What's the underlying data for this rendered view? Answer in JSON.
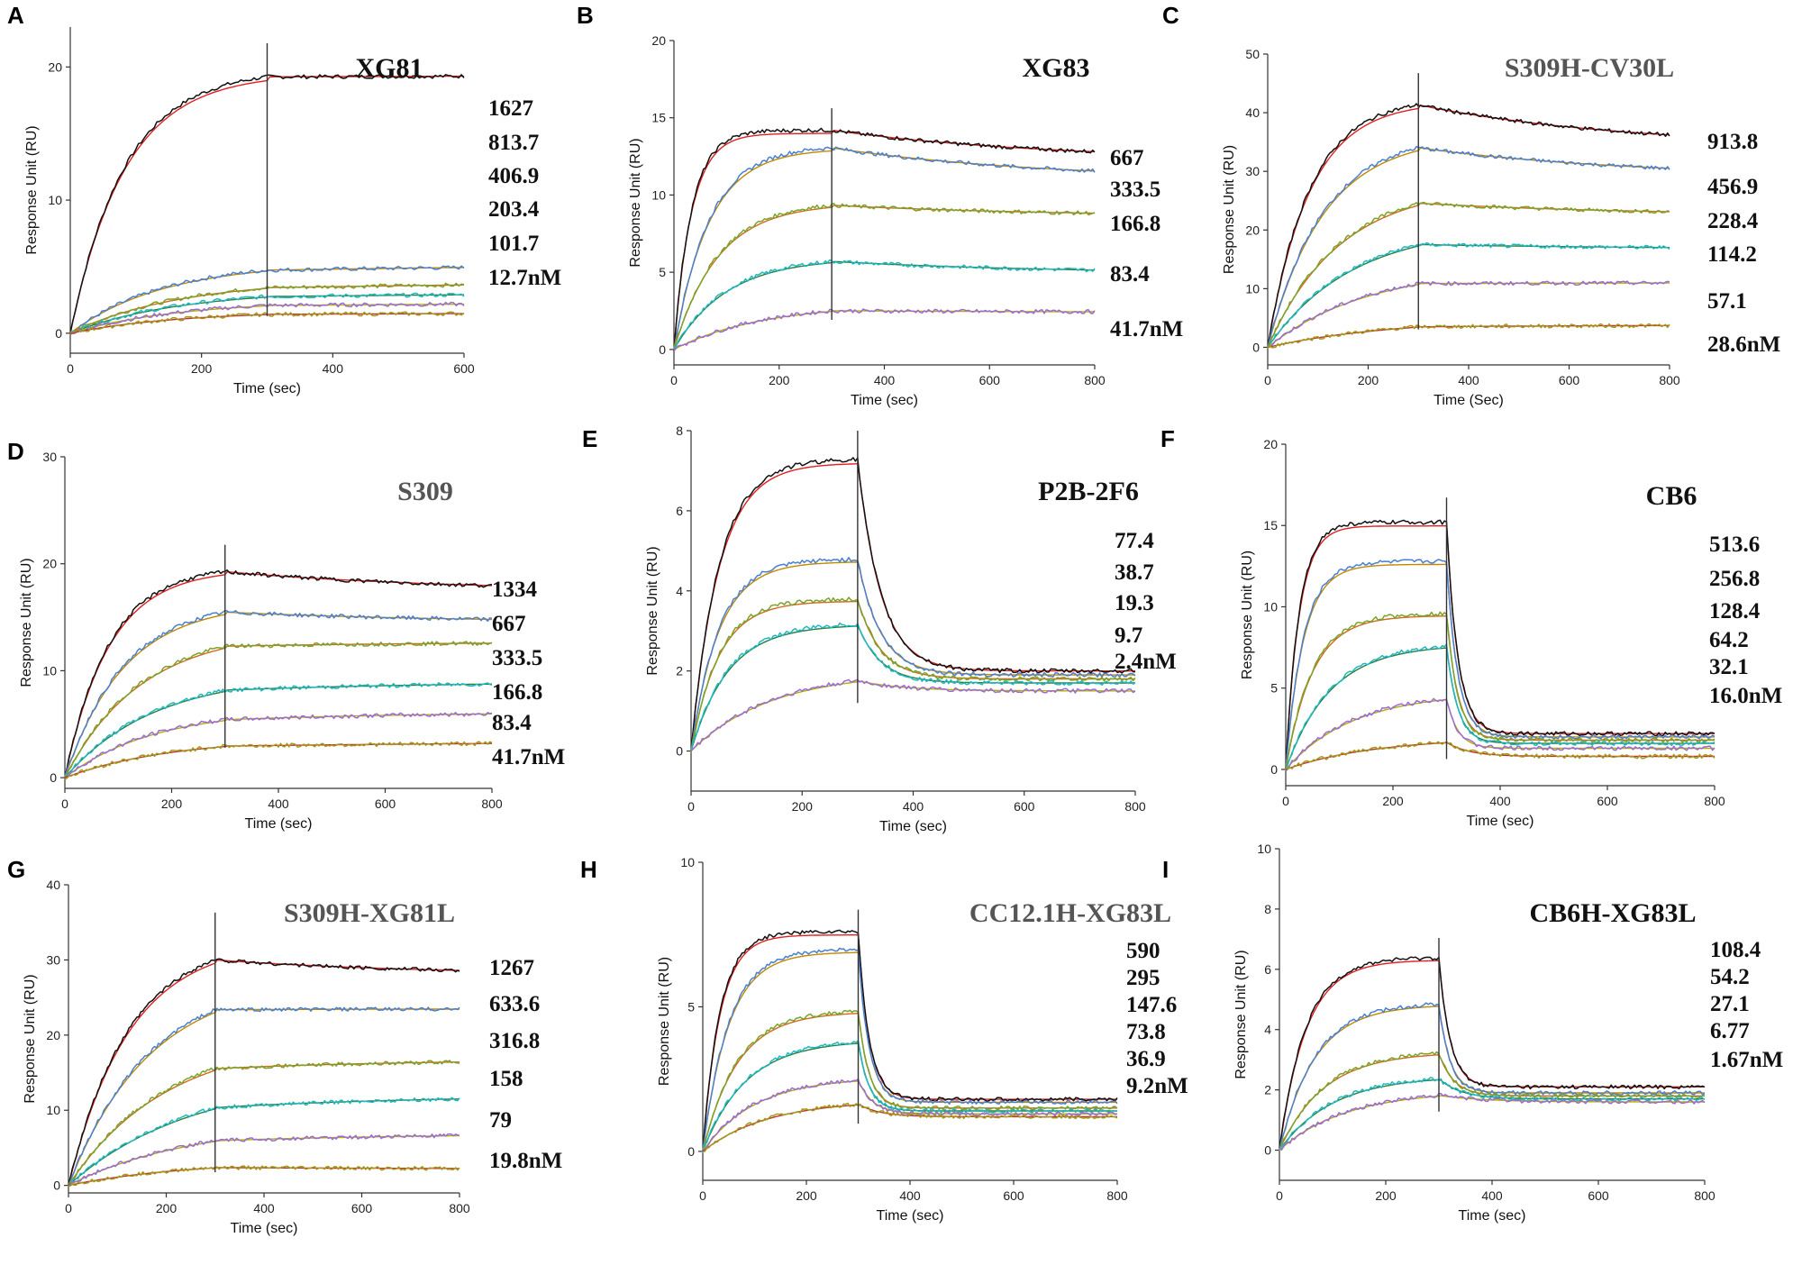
{
  "panels": [
    {
      "letter": "A",
      "title": "XG81",
      "title_color": "#111111",
      "concentrations": [
        "1627",
        "813.7",
        "406.9",
        "203.4",
        "101.7",
        "12.7nM"
      ],
      "xlabel": "Time (sec)",
      "ylabel": "Response Unit (RU)",
      "xlim": [
        0,
        600
      ],
      "ylim": [
        -1.5,
        23
      ],
      "xticks": [
        0,
        200,
        400,
        600
      ],
      "yticks": [
        0,
        10,
        20
      ],
      "injection_end": 300,
      "chart_data": {
        "type": "line",
        "series": [
          {
            "name": "1627",
            "plateau": 19.8,
            "k": 0.012,
            "kd": 5e-05,
            "end": 19.8
          },
          {
            "name": "813.7",
            "plateau": 5.4,
            "k": 0.007,
            "kd": 0.0002,
            "end": 5.4
          },
          {
            "name": "406.9",
            "plateau": 4.1,
            "k": 0.006,
            "kd": 0.0002,
            "end": 4.1
          },
          {
            "name": "203.4",
            "plateau": 3.3,
            "k": 0.006,
            "kd": 0.0002,
            "end": 3.2
          },
          {
            "name": "101.7",
            "plateau": 2.5,
            "k": 0.006,
            "kd": 0.0002,
            "end": 2.4
          },
          {
            "name": "12.7nM",
            "plateau": 1.7,
            "k": 0.006,
            "kd": 0.0002,
            "end": 1.6
          }
        ]
      }
    },
    {
      "letter": "B",
      "title": "XG83",
      "title_color": "#111111",
      "concentrations": [
        "667",
        "333.5",
        "166.8",
        "83.4",
        "41.7nM"
      ],
      "xlabel": "Time (sec)",
      "ylabel": "Response Unit (RU)",
      "xlim": [
        0,
        800
      ],
      "ylim": [
        -1,
        20
      ],
      "xticks": [
        0,
        200,
        400,
        600,
        800
      ],
      "yticks": [
        0,
        5,
        10,
        15,
        20
      ],
      "injection_end": 300,
      "chart_data": {
        "type": "line",
        "series": [
          {
            "name": "667",
            "plateau": 14.2,
            "k": 0.03,
            "kd": 0.0004,
            "end": 12.2
          },
          {
            "name": "333.5",
            "plateau": 13.2,
            "k": 0.015,
            "kd": 0.0004,
            "end": 10.9
          },
          {
            "name": "166.8",
            "plateau": 9.6,
            "k": 0.012,
            "kd": 0.0004,
            "end": 8.6
          },
          {
            "name": "83.4",
            "plateau": 6.0,
            "k": 0.01,
            "kd": 0.0004,
            "end": 4.9
          },
          {
            "name": "41.7nM",
            "plateau": 3.0,
            "k": 0.006,
            "kd": 0.0003,
            "end": 2.4
          }
        ]
      }
    },
    {
      "letter": "C",
      "title": "S309H-CV30L",
      "title_color": "#555555",
      "concentrations": [
        "913.8",
        "456.9",
        "228.4",
        "114.2",
        "57.1",
        "28.6nM"
      ],
      "xlabel": "Time (Sec)",
      "ylabel": "Response Unit (RU)",
      "xlim": [
        0,
        800
      ],
      "ylim": [
        -3,
        50
      ],
      "xticks": [
        0,
        200,
        400,
        600,
        800
      ],
      "yticks": [
        0,
        10,
        20,
        30,
        40,
        50
      ],
      "injection_end": 300,
      "chart_data": {
        "type": "line",
        "series": [
          {
            "name": "913.8",
            "plateau": 42.5,
            "k": 0.012,
            "kd": 0.0004,
            "end": 34.0
          },
          {
            "name": "456.9",
            "plateau": 36.5,
            "k": 0.009,
            "kd": 0.0004,
            "end": 29.0
          },
          {
            "name": "228.4",
            "plateau": 28.0,
            "k": 0.007,
            "kd": 0.0004,
            "end": 22.5
          },
          {
            "name": "114.2",
            "plateau": 21.0,
            "k": 0.006,
            "kd": 0.0004,
            "end": 16.8
          },
          {
            "name": "57.1",
            "plateau": 14.0,
            "k": 0.005,
            "kd": 0.0004,
            "end": 11.0
          },
          {
            "name": "28.6nM",
            "plateau": 5.0,
            "k": 0.004,
            "kd": 0.0004,
            "end": 3.8
          }
        ]
      }
    },
    {
      "letter": "D",
      "title": "S309",
      "title_color": "#555555",
      "concentrations": [
        "1334",
        "667",
        "333.5",
        "166.8",
        "83.4",
        "41.7nM"
      ],
      "xlabel": "Time (sec)",
      "ylabel": "Response Unit (RU)",
      "xlim": [
        0,
        800
      ],
      "ylim": [
        -1,
        30
      ],
      "xticks": [
        0,
        200,
        400,
        600,
        800
      ],
      "yticks": [
        0,
        10,
        20,
        30
      ],
      "injection_end": 300,
      "chart_data": {
        "type": "line",
        "series": [
          {
            "name": "1334",
            "plateau": 19.8,
            "k": 0.012,
            "kd": 0.0004,
            "end": 17.4
          },
          {
            "name": "667",
            "plateau": 16.6,
            "k": 0.009,
            "kd": 0.0004,
            "end": 14.5
          },
          {
            "name": "333.5",
            "plateau": 14.0,
            "k": 0.007,
            "kd": 0.0004,
            "end": 12.7
          },
          {
            "name": "166.8",
            "plateau": 9.8,
            "k": 0.006,
            "kd": 0.0004,
            "end": 9.0
          },
          {
            "name": "83.4",
            "plateau": 6.5,
            "k": 0.006,
            "kd": 0.0004,
            "end": 6.2
          },
          {
            "name": "41.7nM",
            "plateau": 3.8,
            "k": 0.005,
            "kd": 0.0002,
            "end": 3.5
          }
        ]
      }
    },
    {
      "letter": "E",
      "title": "P2B-2F6",
      "title_color": "#111111",
      "concentrations": [
        "77.4",
        "38.7",
        "19.3",
        "9.7",
        "2.4nM"
      ],
      "xlabel": "Time (sec)",
      "ylabel": "Response Unit (RU)",
      "xlim": [
        0,
        800
      ],
      "ylim": [
        -1,
        8
      ],
      "xticks": [
        0,
        200,
        400,
        600,
        800
      ],
      "yticks": [
        0,
        2,
        4,
        6,
        8
      ],
      "injection_end": 300,
      "chart_data": {
        "type": "line",
        "series": [
          {
            "name": "77.4",
            "plateau": 7.3,
            "k": 0.02,
            "kd": 0.004,
            "end": 2.0
          },
          {
            "name": "38.7",
            "plateau": 4.8,
            "k": 0.02,
            "kd": 0.004,
            "end": 1.9
          },
          {
            "name": "19.3",
            "plateau": 3.8,
            "k": 0.02,
            "kd": 0.004,
            "end": 1.8
          },
          {
            "name": "9.7",
            "plateau": 3.2,
            "k": 0.015,
            "kd": 0.004,
            "end": 1.7
          },
          {
            "name": "2.4nM",
            "plateau": 2.0,
            "k": 0.007,
            "kd": 0.002,
            "end": 1.5
          }
        ]
      }
    },
    {
      "letter": "F",
      "title": "CB6",
      "title_color": "#111111",
      "concentrations": [
        "513.6",
        "256.8",
        "128.4",
        "64.2",
        "32.1",
        "16.0nM"
      ],
      "xlabel": "Time (sec)",
      "ylabel": "Response Unit (RU)",
      "xlim": [
        0,
        800
      ],
      "ylim": [
        -1,
        20
      ],
      "xticks": [
        0,
        200,
        400,
        600,
        800
      ],
      "yticks": [
        0,
        5,
        10,
        15,
        20
      ],
      "injection_end": 300,
      "chart_data": {
        "type": "line",
        "series": [
          {
            "name": "513.6",
            "plateau": 15.2,
            "k": 0.04,
            "kd": 0.008,
            "end": 2.2
          },
          {
            "name": "256.8",
            "plateau": 12.8,
            "k": 0.03,
            "kd": 0.008,
            "end": 2.0
          },
          {
            "name": "128.4",
            "plateau": 9.6,
            "k": 0.02,
            "kd": 0.008,
            "end": 1.8
          },
          {
            "name": "64.2",
            "plateau": 7.8,
            "k": 0.012,
            "kd": 0.008,
            "end": 1.6
          },
          {
            "name": "32.1",
            "plateau": 4.8,
            "k": 0.008,
            "kd": 0.008,
            "end": 1.3
          },
          {
            "name": "16.0nM",
            "plateau": 2.0,
            "k": 0.006,
            "kd": 0.004,
            "end": 0.8
          }
        ]
      }
    },
    {
      "letter": "G",
      "title": "S309H-XG81L",
      "title_color": "#555555",
      "concentrations": [
        "1267",
        "633.6",
        "316.8",
        "158",
        "79",
        "19.8nM"
      ],
      "xlabel": "Time (sec)",
      "ylabel": "Response Unit (RU)",
      "xlim": [
        0,
        800
      ],
      "ylim": [
        -1,
        40
      ],
      "xticks": [
        0,
        200,
        400,
        600,
        800
      ],
      "yticks": [
        0,
        10,
        20,
        30,
        40
      ],
      "injection_end": 300,
      "chart_data": {
        "type": "line",
        "series": [
          {
            "name": "1267",
            "plateau": 33.0,
            "k": 0.008,
            "kd": 0.0004,
            "end": 28.0
          },
          {
            "name": "633.6",
            "plateau": 28.0,
            "k": 0.006,
            "kd": 0.0004,
            "end": 23.5
          },
          {
            "name": "316.8",
            "plateau": 20.0,
            "k": 0.005,
            "kd": 0.0004,
            "end": 16.8
          },
          {
            "name": "158",
            "plateau": 14.8,
            "k": 0.004,
            "kd": 0.0004,
            "end": 12.0
          },
          {
            "name": "79",
            "plateau": 8.5,
            "k": 0.004,
            "kd": 0.0004,
            "end": 6.9
          },
          {
            "name": "19.8nM",
            "plateau": 3.4,
            "k": 0.004,
            "kd": 0.0004,
            "end": 2.2
          }
        ]
      }
    },
    {
      "letter": "H",
      "title": "CC12.1H-XG83L",
      "title_color": "#555555",
      "concentrations": [
        "590",
        "295",
        "147.6",
        "73.8",
        "36.9",
        "9.2nM"
      ],
      "xlabel": "Time (sec)",
      "ylabel": "Response Unit (RU)",
      "xlim": [
        0,
        800
      ],
      "ylim": [
        -1,
        10
      ],
      "xticks": [
        0,
        200,
        400,
        600,
        800
      ],
      "yticks": [
        0,
        5,
        10
      ],
      "injection_end": 300,
      "chart_data": {
        "type": "line",
        "series": [
          {
            "name": "590",
            "plateau": 7.6,
            "k": 0.03,
            "kd": 0.008,
            "end": 1.8
          },
          {
            "name": "295",
            "plateau": 7.0,
            "k": 0.02,
            "kd": 0.008,
            "end": 1.7
          },
          {
            "name": "147.6",
            "plateau": 4.9,
            "k": 0.015,
            "kd": 0.008,
            "end": 1.5
          },
          {
            "name": "73.8",
            "plateau": 3.9,
            "k": 0.012,
            "kd": 0.008,
            "end": 1.4
          },
          {
            "name": "36.9",
            "plateau": 2.6,
            "k": 0.01,
            "kd": 0.006,
            "end": 1.3
          },
          {
            "name": "9.2nM",
            "plateau": 1.8,
            "k": 0.008,
            "kd": 0.004,
            "end": 1.2
          }
        ]
      }
    },
    {
      "letter": "I",
      "title": "CB6H-XG83L",
      "title_color": "#111111",
      "concentrations": [
        "108.4",
        "54.2",
        "27.1",
        "6.77",
        "1.67nM"
      ],
      "xlabel": "Time (sec)",
      "ylabel": "Response Unit (RU)",
      "xlim": [
        0,
        800
      ],
      "ylim": [
        -1,
        10
      ],
      "xticks": [
        0,
        200,
        400,
        600,
        800
      ],
      "yticks": [
        0,
        2,
        4,
        6,
        8,
        10
      ],
      "injection_end": 300,
      "chart_data": {
        "type": "line",
        "series": [
          {
            "name": "108.4",
            "plateau": 6.4,
            "k": 0.02,
            "kd": 0.008,
            "end": 2.1
          },
          {
            "name": "54.2",
            "plateau": 4.9,
            "k": 0.015,
            "kd": 0.008,
            "end": 1.9
          },
          {
            "name": "27.1",
            "plateau": 3.3,
            "k": 0.012,
            "kd": 0.006,
            "end": 1.8
          },
          {
            "name": "6.77",
            "plateau": 2.5,
            "k": 0.01,
            "kd": 0.004,
            "end": 1.7
          },
          {
            "name": "1.67nM",
            "plateau": 2.0,
            "k": 0.008,
            "kd": 0.002,
            "end": 1.6
          }
        ]
      }
    }
  ],
  "trace_colors": [
    "#111111",
    "#4a7fd1",
    "#7aa32a",
    "#1fb8c2",
    "#9b6ad6",
    "#a39a1c"
  ],
  "fit_colors": [
    "#e02020",
    "#c08a00",
    "#d2691e",
    "#2a7d3c",
    "#b0b000",
    "#c03030"
  ]
}
